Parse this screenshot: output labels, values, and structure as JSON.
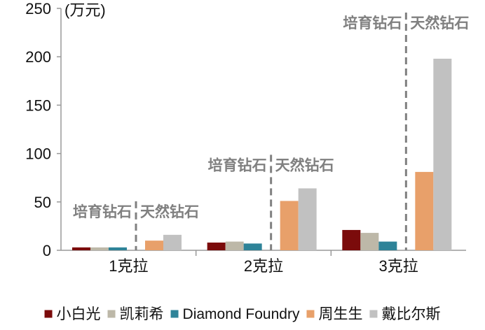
{
  "chart_data": {
    "type": "bar",
    "ylabel": "(万元)",
    "ylim": [
      0,
      250
    ],
    "yticks": [
      0,
      50,
      100,
      150,
      200,
      250
    ],
    "categories": [
      "1克拉",
      "2克拉",
      "3克拉"
    ],
    "series": [
      {
        "name": "小白光",
        "color": "#7b0b0b",
        "values": [
          3,
          8,
          21
        ],
        "group": "培育钻石"
      },
      {
        "name": "凯莉希",
        "color": "#bdb8a8",
        "values": [
          3,
          9,
          18
        ],
        "group": "培育钻石"
      },
      {
        "name": "Diamond Foundry",
        "color": "#2e8398",
        "values": [
          3,
          7,
          9
        ],
        "group": "培育钻石"
      },
      {
        "name": "周生生",
        "color": "#e8a06a",
        "values": [
          10,
          51,
          81
        ],
        "group": "天然钻石"
      },
      {
        "name": "戴比尔斯",
        "color": "#c1c1c1",
        "values": [
          16,
          64,
          198
        ],
        "group": "天然钻石"
      }
    ],
    "annotations": {
      "lab_grown_label": "培育钻石",
      "natural_label": "天然钻石"
    },
    "legend_position": "bottom",
    "grid": false,
    "divider_color": "#808080"
  }
}
